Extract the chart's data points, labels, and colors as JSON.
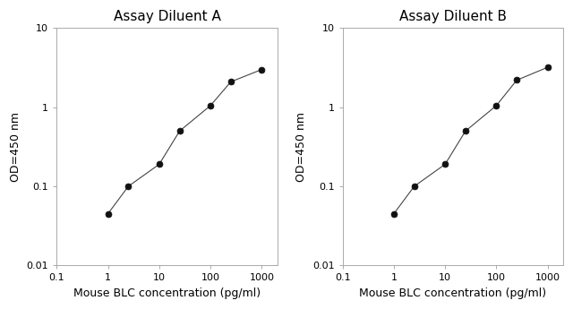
{
  "title_A": "Assay Diluent A",
  "title_B": "Assay Diluent B",
  "xlabel": "Mouse BLC concentration (pg/ml)",
  "ylabel": "OD=450 nm",
  "x_A": [
    1,
    2.5,
    10,
    25,
    100,
    250,
    1000
  ],
  "y_A": [
    0.045,
    0.1,
    0.19,
    0.5,
    1.05,
    2.1,
    3.0
  ],
  "x_B": [
    1,
    2.5,
    10,
    25,
    100,
    250,
    1000
  ],
  "y_B": [
    0.045,
    0.1,
    0.19,
    0.5,
    1.05,
    2.2,
    3.2
  ],
  "xlim": [
    0.1,
    2000
  ],
  "ylim": [
    0.01,
    10
  ],
  "line_color": "#444444",
  "marker_color": "#111111",
  "marker_size": 5,
  "bg_color": "#ffffff",
  "title_fontsize": 11,
  "label_fontsize": 9,
  "tick_fontsize": 8
}
